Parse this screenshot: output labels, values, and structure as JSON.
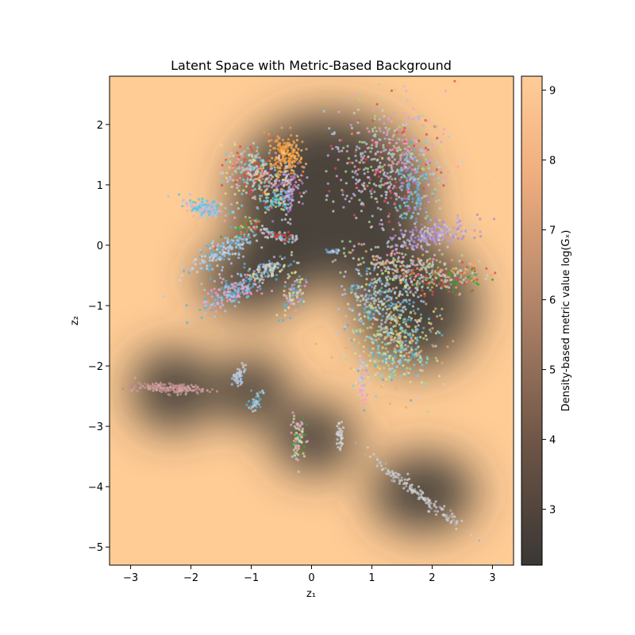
{
  "chart_data": {
    "type": "scatter",
    "title": "Latent Space with Metric-Based Background",
    "xlabel": "z₁",
    "ylabel": "z₂",
    "xlim": [
      -3.35,
      3.35
    ],
    "ylim": [
      -5.3,
      2.8
    ],
    "xticks": [
      -3,
      -2,
      -1,
      0,
      1,
      2,
      3
    ],
    "yticks": [
      -5,
      -4,
      -3,
      -2,
      -1,
      0,
      1,
      2
    ],
    "xtick_labels": [
      "−3",
      "−2",
      "−1",
      "0",
      "1",
      "2",
      "3"
    ],
    "ytick_labels": [
      "−5",
      "−4",
      "−3",
      "−2",
      "−1",
      "0",
      "1",
      "2"
    ],
    "grid": false,
    "colorbar": {
      "label": "Density-based metric value log(Gₓ)",
      "range": [
        2.2,
        9.2
      ],
      "ticks": [
        3,
        4,
        5,
        6,
        7,
        8,
        9
      ],
      "tick_labels": [
        "3",
        "4",
        "5",
        "6",
        "7",
        "8",
        "9"
      ],
      "colormap": "copper",
      "low_color": "#3a3735",
      "high_color": "#ffcc96"
    },
    "background_color": "#ffcc96",
    "clusters": [
      {
        "center": [
          -1.77,
          0.62
        ],
        "spread": [
          0.18,
          0.07
        ],
        "angle": -10,
        "colors": [
          "#4fc6e0",
          "#9ec9ef",
          "#f2a6c8"
        ],
        "n": 160
      },
      {
        "center": [
          -1.5,
          -0.12
        ],
        "spread": [
          0.35,
          0.1
        ],
        "angle": 30,
        "colors": [
          "#aac8ee",
          "#cfd6e6",
          "#5ab3d9"
        ],
        "n": 200
      },
      {
        "center": [
          -1.1,
          0.3
        ],
        "spread": [
          0.15,
          0.06
        ],
        "angle": 30,
        "colors": [
          "#3aa33a",
          "#9fd68c",
          "#e25050"
        ],
        "n": 70
      },
      {
        "center": [
          -0.95,
          1.2
        ],
        "spread": [
          0.3,
          0.2
        ],
        "angle": -20,
        "colors": [
          "#c9cdd8",
          "#f1a0a8",
          "#e2e28e",
          "#e14848",
          "#6dd3e8"
        ],
        "n": 320
      },
      {
        "center": [
          -0.42,
          1.48
        ],
        "spread": [
          0.14,
          0.18
        ],
        "angle": 10,
        "colors": [
          "#f69b37",
          "#ff9f40",
          "#ffb860"
        ],
        "n": 180
      },
      {
        "center": [
          -0.38,
          0.92
        ],
        "spread": [
          0.14,
          0.22
        ],
        "angle": 0,
        "colors": [
          "#b37ad6",
          "#cfa9e6",
          "#d8d8d8"
        ],
        "n": 120
      },
      {
        "center": [
          -0.6,
          0.75
        ],
        "spread": [
          0.12,
          0.1
        ],
        "angle": 0,
        "colors": [
          "#5ad0e2",
          "#d6d97b"
        ],
        "n": 60
      },
      {
        "center": [
          -0.52,
          0.15
        ],
        "spread": [
          0.18,
          0.04
        ],
        "angle": -10,
        "colors": [
          "#6dd3e8",
          "#e14848",
          "#c9cdd8"
        ],
        "n": 70
      },
      {
        "center": [
          -1.25,
          -0.75
        ],
        "spread": [
          0.32,
          0.12
        ],
        "angle": 25,
        "colors": [
          "#aac8ee",
          "#f49ccf",
          "#5ab3d9"
        ],
        "n": 230
      },
      {
        "center": [
          -0.7,
          -0.4
        ],
        "spread": [
          0.18,
          0.08
        ],
        "angle": 20,
        "colors": [
          "#e2e28e",
          "#c9cdd8",
          "#6a9fd2"
        ],
        "n": 100
      },
      {
        "center": [
          -0.3,
          -0.8
        ],
        "spread": [
          0.09,
          0.18
        ],
        "angle": -20,
        "colors": [
          "#f49ccf",
          "#5ab3d9",
          "#e2e28e"
        ],
        "n": 90
      },
      {
        "center": [
          0.35,
          -0.1
        ],
        "spread": [
          0.06,
          0.02
        ],
        "angle": 0,
        "colors": [
          "#6a9fd2",
          "#c9cdd8"
        ],
        "n": 20
      },
      {
        "center": [
          1.3,
          1.35
        ],
        "spread": [
          0.45,
          0.5
        ],
        "angle": -20,
        "colors": [
          "#c9cdd8",
          "#f49ccf",
          "#a8d98b",
          "#e14848",
          "#aac8ee",
          "#c7a4e0"
        ],
        "n": 560
      },
      {
        "center": [
          1.7,
          0.9
        ],
        "spread": [
          0.15,
          0.3
        ],
        "angle": 0,
        "colors": [
          "#b37ad6",
          "#6dd3e8",
          "#5ab3d9"
        ],
        "n": 120
      },
      {
        "center": [
          2.0,
          0.18
        ],
        "spread": [
          0.35,
          0.1
        ],
        "angle": 10,
        "colors": [
          "#a98ad9",
          "#b99be6",
          "#c9cdd8"
        ],
        "n": 200
      },
      {
        "center": [
          1.6,
          -0.35
        ],
        "spread": [
          0.45,
          0.15
        ],
        "angle": -10,
        "colors": [
          "#c9cdd8",
          "#f6a663",
          "#a8d98b",
          "#f49ccf"
        ],
        "n": 230
      },
      {
        "center": [
          2.2,
          -0.55
        ],
        "spread": [
          0.4,
          0.12
        ],
        "angle": 5,
        "colors": [
          "#3aa33a",
          "#e14848",
          "#f6a663",
          "#c9cdd8"
        ],
        "n": 200
      },
      {
        "center": [
          1.15,
          -0.85
        ],
        "spread": [
          0.3,
          0.3
        ],
        "angle": 0,
        "colors": [
          "#c9cdd8",
          "#aac8ee",
          "#5ab3d9",
          "#e2e28e"
        ],
        "n": 280
      },
      {
        "center": [
          1.35,
          -1.65
        ],
        "spread": [
          0.35,
          0.35
        ],
        "angle": -25,
        "colors": [
          "#5ab3d9",
          "#f6a663",
          "#c9cdd8",
          "#6dd3e8",
          "#e2e28e",
          "#a8d98b"
        ],
        "n": 480
      },
      {
        "center": [
          0.85,
          -2.25
        ],
        "spread": [
          0.04,
          0.2
        ],
        "angle": 0,
        "colors": [
          "#f49ccf",
          "#c9cdd8"
        ],
        "n": 40
      },
      {
        "center": [
          -2.38,
          -2.37
        ],
        "spread": [
          0.28,
          0.04
        ],
        "angle": -3,
        "colors": [
          "#c89a9a",
          "#d8a8a8",
          "#b88a8a"
        ],
        "n": 180
      },
      {
        "center": [
          -1.2,
          -2.15
        ],
        "spread": [
          0.1,
          0.04
        ],
        "angle": 60,
        "colors": [
          "#c9cdd8",
          "#aac8ee"
        ],
        "n": 45
      },
      {
        "center": [
          -0.92,
          -2.6
        ],
        "spread": [
          0.09,
          0.05
        ],
        "angle": 60,
        "colors": [
          "#c9cdd8",
          "#5ab3d9"
        ],
        "n": 40
      },
      {
        "center": [
          -0.22,
          -3.2
        ],
        "spread": [
          0.06,
          0.18
        ],
        "angle": 0,
        "colors": [
          "#c9cdd8",
          "#3aa33a",
          "#e2e28e",
          "#f49ccf"
        ],
        "n": 90
      },
      {
        "center": [
          0.47,
          -3.15
        ],
        "spread": [
          0.03,
          0.12
        ],
        "angle": 0,
        "colors": [
          "#c9cdd8",
          "#d8d8d8"
        ],
        "n": 35
      },
      {
        "center": [
          1.75,
          -4.1
        ],
        "spread": [
          0.55,
          0.04
        ],
        "angle": -38,
        "colors": [
          "#c9cdd8",
          "#d0d0d0",
          "#b0b0b0"
        ],
        "n": 170
      }
    ],
    "dark_blobs": [
      {
        "center": [
          0.3,
          0.75
        ],
        "r": [
          2.25,
          2.0
        ]
      },
      {
        "center": [
          1.75,
          -1.0
        ],
        "r": [
          1.35,
          1.45
        ]
      },
      {
        "center": [
          -1.0,
          -0.55
        ],
        "r": [
          1.2,
          0.8
        ]
      },
      {
        "center": [
          -2.3,
          -2.4
        ],
        "r": [
          0.95,
          0.95
        ]
      },
      {
        "center": [
          -1.0,
          -2.4
        ],
        "r": [
          0.85,
          0.8
        ]
      },
      {
        "center": [
          0.05,
          -3.2
        ],
        "r": [
          0.95,
          0.8
        ]
      },
      {
        "center": [
          1.85,
          -4.1
        ],
        "r": [
          1.2,
          0.9
        ]
      }
    ]
  }
}
